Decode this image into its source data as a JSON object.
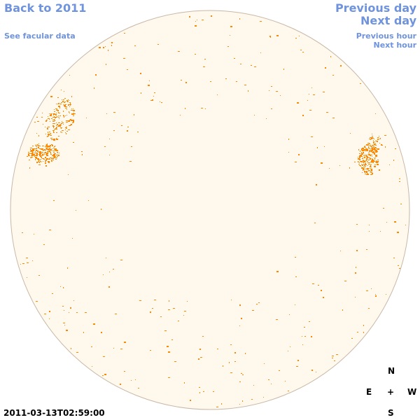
{
  "nav": {
    "back_label": "Back to 2011",
    "facular_label": "See facular data",
    "prev_day_label": "Previous day",
    "next_day_label": "Next day",
    "prev_hour_label": "Previous hour",
    "next_hour_label": "Next hour"
  },
  "compass": {
    "n": "N",
    "e": "E",
    "center": "+",
    "w": "W",
    "s": "S"
  },
  "timestamp": "2011-03-13T02:59:00",
  "colors": {
    "link": "#6f93dc",
    "disk_fill": "#fff8ec",
    "disk_border": "#c8b8a8",
    "feature": "#ff8800"
  }
}
